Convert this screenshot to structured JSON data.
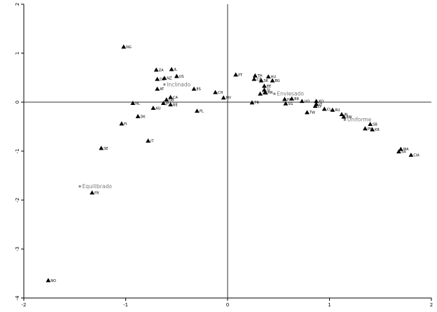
{
  "chart_data": {
    "type": "scatter",
    "title": "",
    "xlabel": "",
    "ylabel": "",
    "xlim": [
      -2,
      2
    ],
    "ylim": [
      -4,
      2
    ],
    "xticks": [
      -2,
      -1,
      0,
      1,
      2
    ],
    "yticks": [
      -4,
      -3,
      -2,
      -1,
      0,
      1,
      2
    ],
    "tick_labels_x": [
      "-2",
      "-1",
      "0",
      "1",
      "2"
    ],
    "tick_labels_y": [
      "-4",
      "-3",
      "-2",
      "-1",
      "0",
      "1",
      "2"
    ],
    "reference_lines": {
      "x": 0,
      "y": 0
    },
    "grid": false,
    "series": [
      {
        "marker": "triangle",
        "color": "#000000",
        "points": [
          {
            "label": "NG",
            "x": -1.02,
            "y": 1.13
          },
          {
            "label": "ZA",
            "x": -0.7,
            "y": 0.66
          },
          {
            "label": "IL",
            "x": -0.55,
            "y": 0.67
          },
          {
            "label": "US",
            "x": -0.5,
            "y": 0.53
          },
          {
            "label": "NZ",
            "x": -0.62,
            "y": 0.49
          },
          {
            "label": "DE",
            "x": -0.69,
            "y": 0.47
          },
          {
            "label": "AT",
            "x": -0.69,
            "y": 0.27
          },
          {
            "label": "ES",
            "x": -0.33,
            "y": 0.27
          },
          {
            "label": "CA",
            "x": -0.56,
            "y": 0.1
          },
          {
            "label": "GB",
            "x": -0.6,
            "y": 0.05
          },
          {
            "label": "JP",
            "x": -0.63,
            "y": -0.02
          },
          {
            "label": "BE",
            "x": -0.56,
            "y": -0.05
          },
          {
            "label": "NL",
            "x": -0.93,
            "y": -0.02
          },
          {
            "label": "AU",
            "x": -0.73,
            "y": -0.12
          },
          {
            "label": "DK",
            "x": -0.88,
            "y": -0.29
          },
          {
            "label": "FI",
            "x": -1.04,
            "y": -0.44
          },
          {
            "label": "IT",
            "x": -0.78,
            "y": -0.79
          },
          {
            "label": "SE",
            "x": -1.24,
            "y": -0.94
          },
          {
            "label": "FR",
            "x": -1.33,
            "y": -1.85
          },
          {
            "label": "NO",
            "x": -1.76,
            "y": -3.64
          },
          {
            "label": "PL",
            "x": -0.3,
            "y": -0.18
          },
          {
            "label": "CH",
            "x": -0.12,
            "y": 0.2
          },
          {
            "label": "MY",
            "x": -0.04,
            "y": 0.09
          },
          {
            "label": "PT",
            "x": 0.08,
            "y": 0.56
          },
          {
            "label": "TH",
            "x": 0.27,
            "y": 0.54
          },
          {
            "label": "CZ",
            "x": 0.26,
            "y": 0.47
          },
          {
            "label": "HU",
            "x": 0.4,
            "y": 0.52
          },
          {
            "label": "SK",
            "x": 0.33,
            "y": 0.44
          },
          {
            "label": "BG",
            "x": 0.44,
            "y": 0.44
          },
          {
            "label": "EE",
            "x": 0.36,
            "y": 0.33
          },
          {
            "label": "SI",
            "x": 0.36,
            "y": 0.25
          },
          {
            "label": "HR",
            "x": 0.37,
            "y": 0.2
          },
          {
            "label": "MX",
            "x": 0.32,
            "y": 0.17
          },
          {
            "label": "TR",
            "x": 0.24,
            "y": -0.01
          },
          {
            "label": "HK",
            "x": 0.56,
            "y": 0.06
          },
          {
            "label": "BR",
            "x": 0.63,
            "y": 0.07
          },
          {
            "label": "SG",
            "x": 0.57,
            "y": -0.03
          },
          {
            "label": "UO",
            "x": 0.73,
            "y": 0.02
          },
          {
            "label": "KO",
            "x": 0.87,
            "y": 0.02
          },
          {
            "label": "LT",
            "x": 0.87,
            "y": -0.04
          },
          {
            "label": "LV",
            "x": 0.86,
            "y": -0.08
          },
          {
            "label": "CL",
            "x": 0.95,
            "y": -0.14
          },
          {
            "label": "RU",
            "x": 1.03,
            "y": -0.16
          },
          {
            "label": "TW",
            "x": 0.78,
            "y": -0.21
          },
          {
            "label": "IN",
            "x": 1.12,
            "y": -0.25
          },
          {
            "label": "RW",
            "x": 1.14,
            "y": -0.3
          },
          {
            "label": "SB",
            "x": 1.4,
            "y": -0.45
          },
          {
            "label": "PH",
            "x": 1.35,
            "y": -0.54
          },
          {
            "label": "KR",
            "x": 1.42,
            "y": -0.56
          },
          {
            "label": "MA",
            "x": 1.7,
            "y": -0.96
          },
          {
            "label": "SA",
            "x": 1.68,
            "y": -1.01
          },
          {
            "label": "CIA",
            "x": 1.8,
            "y": -1.08
          }
        ]
      },
      {
        "marker": "dot",
        "color": "#888888",
        "points": [
          {
            "label": "Inclinado",
            "x": -0.62,
            "y": 0.36
          },
          {
            "label": "Enviesado",
            "x": 0.46,
            "y": 0.17
          },
          {
            "label": "Uniforme",
            "x": 1.15,
            "y": -0.36
          },
          {
            "label": "Equilibrado",
            "x": -1.45,
            "y": -1.72
          }
        ]
      }
    ]
  }
}
